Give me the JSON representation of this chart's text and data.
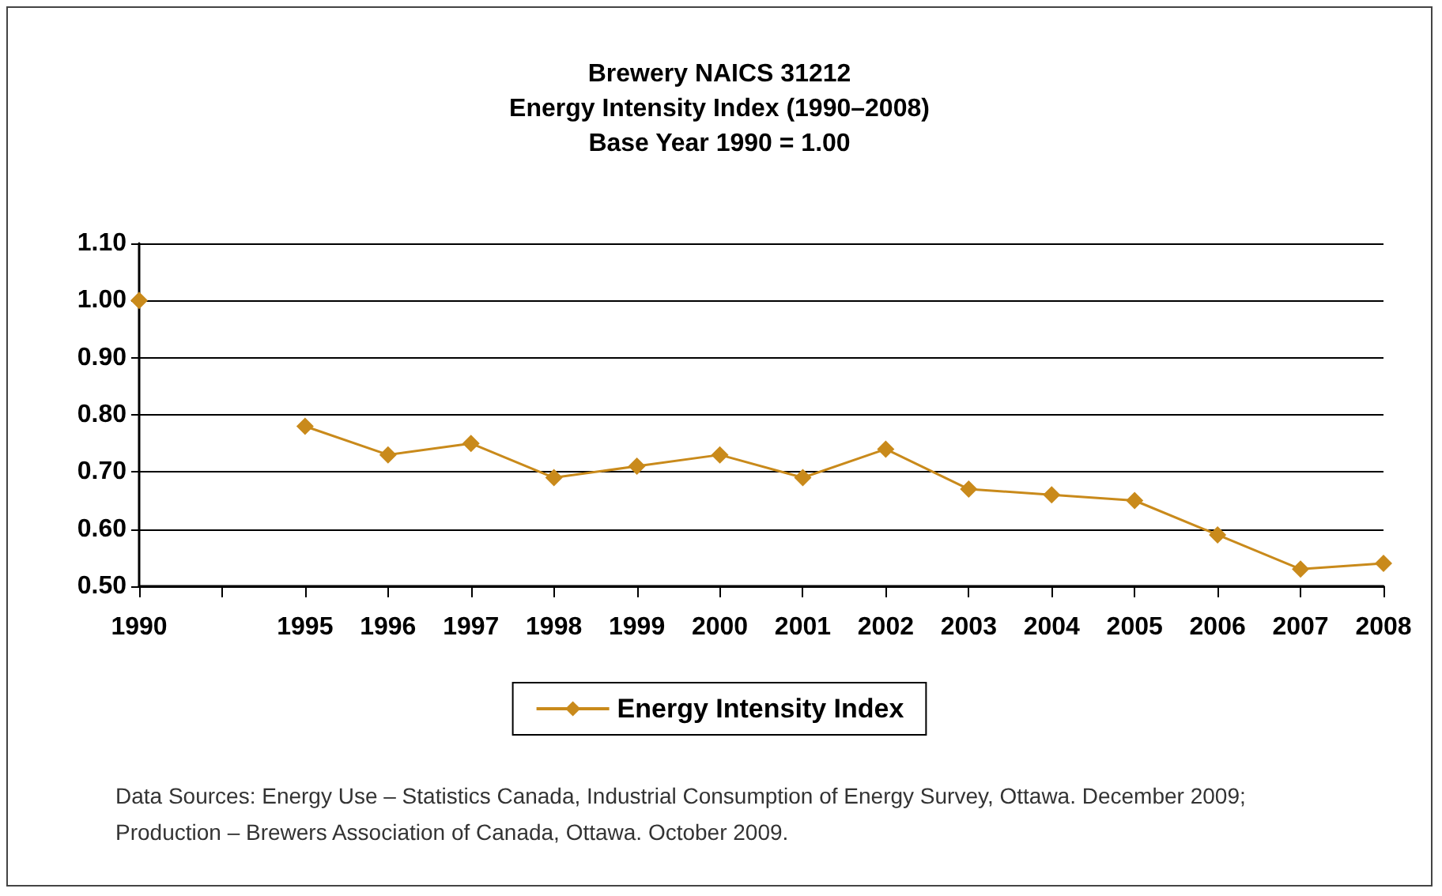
{
  "chart_data": {
    "type": "line",
    "title": "Brewery NAICS 31212\nEnergy Intensity Index (1990–2008)\nBase Year 1990 = 1.00",
    "categories": [
      "1990",
      null,
      "1995",
      "1996",
      "1997",
      "1998",
      "1999",
      "2000",
      "2001",
      "2002",
      "2003",
      "2004",
      "2005",
      "2006",
      "2007",
      "2008"
    ],
    "series": [
      {
        "name": "Energy Intensity Index",
        "color": "#c98a1b",
        "values": [
          1.0,
          null,
          0.78,
          0.73,
          0.75,
          0.69,
          0.71,
          0.73,
          0.69,
          0.74,
          0.67,
          0.66,
          0.65,
          0.59,
          0.53,
          0.54
        ]
      }
    ],
    "ylim": [
      0.5,
      1.1
    ],
    "yticks": [
      {
        "value": 0.5,
        "label": "0.50"
      },
      {
        "value": 0.6,
        "label": "0.60"
      },
      {
        "value": 0.7,
        "label": "0.70"
      },
      {
        "value": 0.8,
        "label": "0.80"
      },
      {
        "value": 0.9,
        "label": "0.90"
      },
      {
        "value": 1.0,
        "label": "1.00"
      },
      {
        "value": 1.1,
        "label": "1.10"
      }
    ],
    "grid": "y",
    "legend": "bottom",
    "marker": "diamond",
    "line_style": "solid",
    "annotations": [
      "Data Sources: Energy Use – Statistics Canada, Industrial Consumption of Energy Survey, Ottawa. December 2009;\nProduction – Brewers Association of Canada, Ottawa. October 2009."
    ]
  }
}
